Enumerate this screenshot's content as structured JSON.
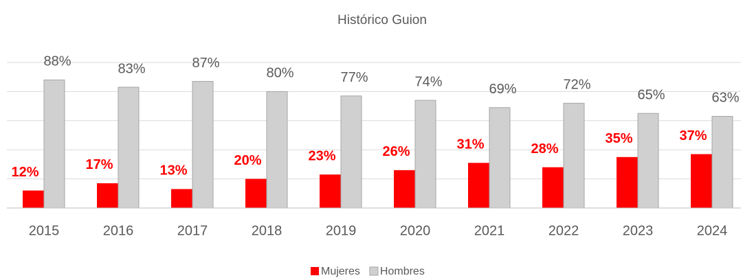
{
  "chart_data": {
    "type": "bar",
    "title": "Histórico Guion",
    "categories": [
      "2015",
      "2016",
      "2017",
      "2018",
      "2019",
      "2020",
      "2021",
      "2022",
      "2023",
      "2024"
    ],
    "series": [
      {
        "name": "Mujeres",
        "color": "#ff0000",
        "values": [
          12,
          17,
          13,
          20,
          23,
          26,
          31,
          28,
          35,
          37
        ],
        "value_labels": [
          "12%",
          "17%",
          "13%",
          "20%",
          "23%",
          "26%",
          "31%",
          "28%",
          "35%",
          "37%"
        ]
      },
      {
        "name": "Hombres",
        "color": "#d0d0d0",
        "values": [
          88,
          83,
          87,
          80,
          77,
          74,
          69,
          72,
          65,
          63
        ],
        "value_labels": [
          "88%",
          "83%",
          "87%",
          "80%",
          "77%",
          "74%",
          "69%",
          "72%",
          "65%",
          "63%"
        ]
      }
    ],
    "ylim": [
      0,
      100
    ],
    "yticks": [
      0,
      20,
      40,
      60,
      80,
      100
    ],
    "grid": true,
    "legend": "bottom"
  }
}
